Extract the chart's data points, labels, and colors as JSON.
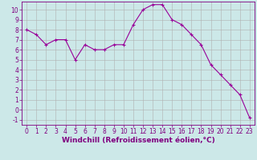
{
  "x": [
    0,
    1,
    2,
    3,
    4,
    5,
    6,
    7,
    8,
    9,
    10,
    11,
    12,
    13,
    14,
    15,
    16,
    17,
    18,
    19,
    20,
    21,
    22,
    23
  ],
  "y": [
    8,
    7.5,
    6.5,
    7,
    7,
    5,
    6.5,
    6,
    6,
    6.5,
    6.5,
    8.5,
    10,
    10.5,
    10.5,
    9,
    8.5,
    7.5,
    6.5,
    4.5,
    3.5,
    2.5,
    1.5,
    -0.8
  ],
  "line_color": "#990099",
  "marker": "+",
  "bg_color": "#cce8e8",
  "grid_color": "#b0b0b0",
  "xlabel": "Windchill (Refroidissement éolien,°C)",
  "xlim": [
    -0.5,
    23.5
  ],
  "ylim": [
    -1.5,
    10.8
  ],
  "xticks": [
    0,
    1,
    2,
    3,
    4,
    5,
    6,
    7,
    8,
    9,
    10,
    11,
    12,
    13,
    14,
    15,
    16,
    17,
    18,
    19,
    20,
    21,
    22,
    23
  ],
  "yticks": [
    -1,
    0,
    1,
    2,
    3,
    4,
    5,
    6,
    7,
    8,
    9,
    10
  ],
  "tick_fontsize": 5.5,
  "xlabel_fontsize": 6.5,
  "line_width": 0.8,
  "marker_size": 3.5,
  "text_color": "#800080"
}
